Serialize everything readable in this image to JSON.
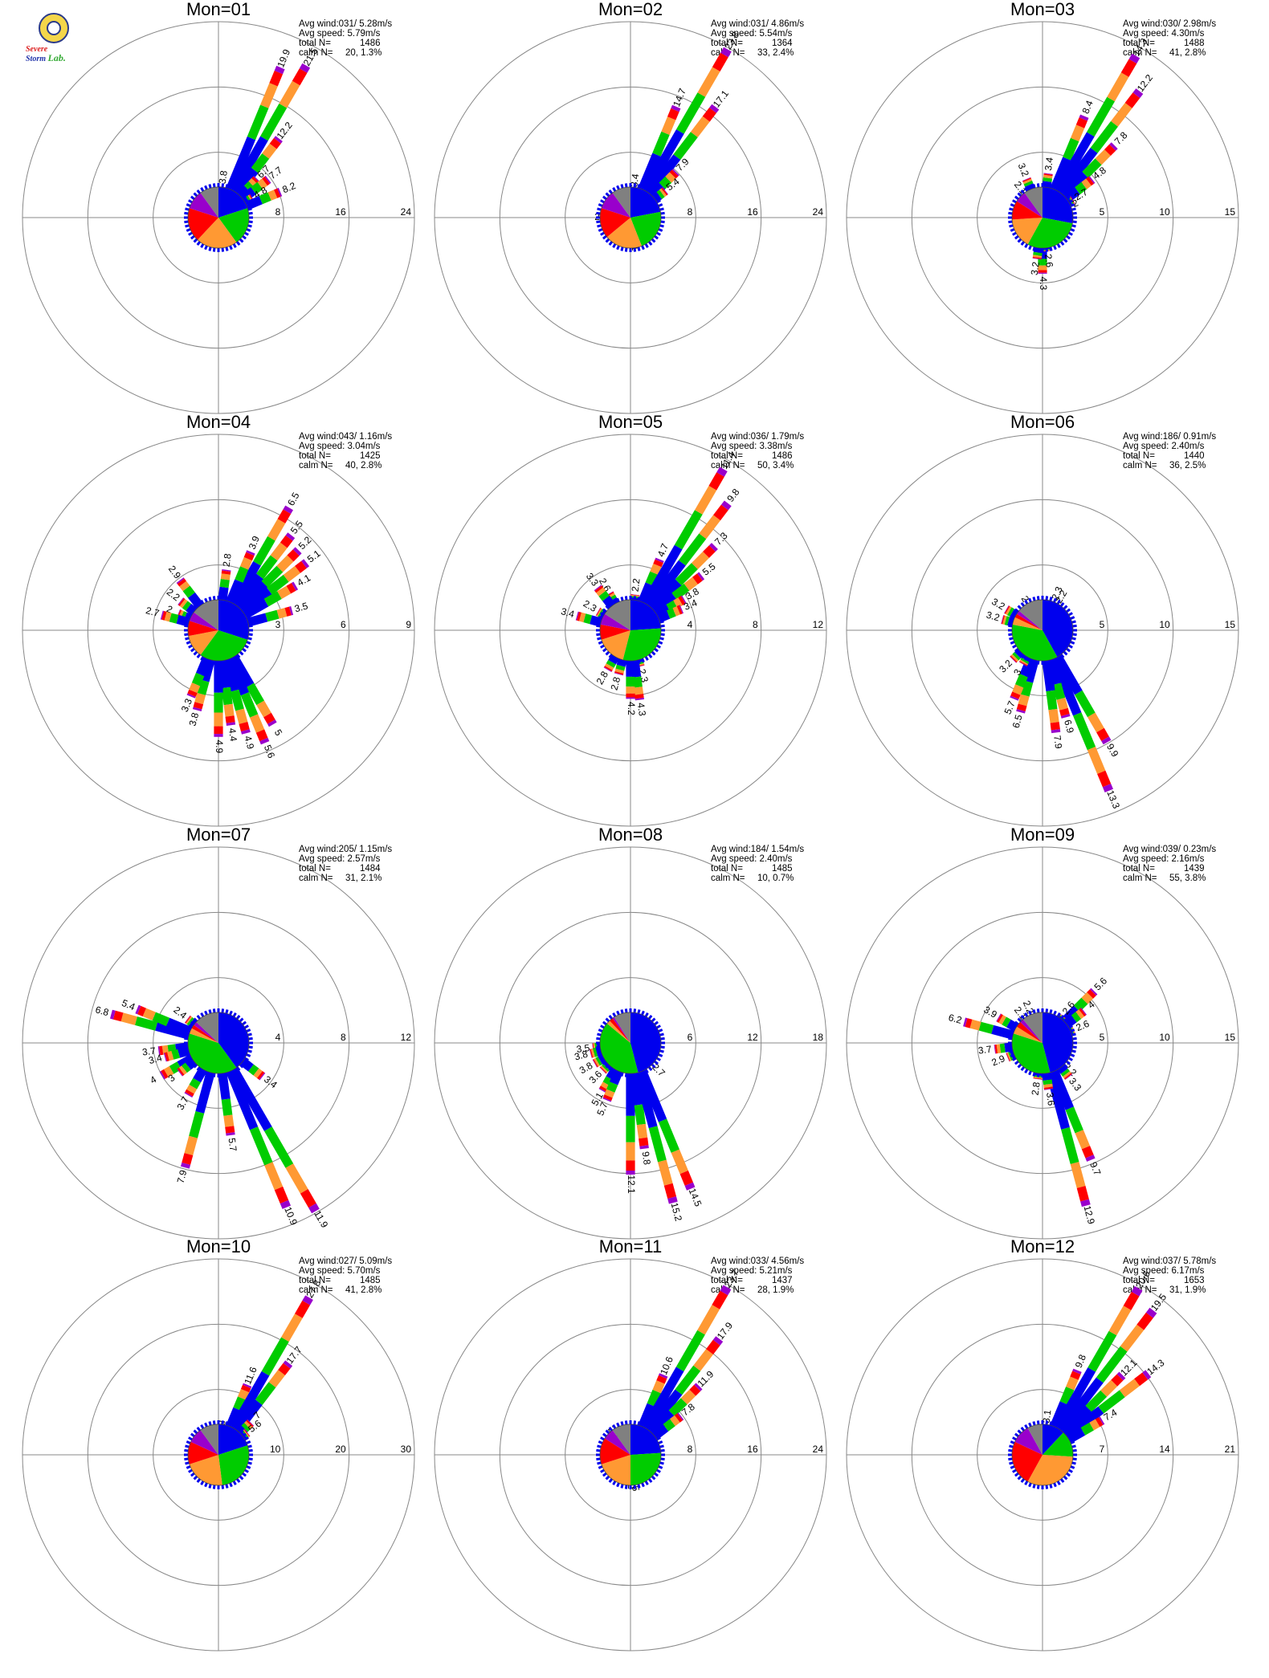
{
  "logo": {
    "word1": "Severe",
    "word2": "Storm",
    "word3": "Lab."
  },
  "colors": {
    "ring": "#888888",
    "axis": "#888888",
    "sector": [
      "#0000ee",
      "#00cc00",
      "#ff9933",
      "#ff0000",
      "#9900cc"
    ],
    "pie": [
      "#0000ee",
      "#00cc00",
      "#ff9933",
      "#ff0000",
      "#9900cc",
      "#808080"
    ]
  },
  "stats_labels": {
    "avg_wind": "Avg wind:",
    "avg_speed": "Avg speed:",
    "total": "total N=",
    "calm": "calm N="
  },
  "chart_data": [
    {
      "type": "wind-rose",
      "title": "Mon=01",
      "avg_wind": "031/ 5.28m/s",
      "avg_speed": "5.79m/s",
      "total_n": "1486",
      "calm_n": "20,",
      "calm_pct": "1.3%",
      "rings": [
        8,
        16,
        24
      ],
      "ring_labels": [
        "8",
        "16",
        "24"
      ],
      "labeled_bars": [
        {
          "dir": 22.5,
          "value": 19.9
        },
        {
          "dir": 30,
          "value": 21.5
        },
        {
          "dir": 37.5,
          "value": 12.2
        },
        {
          "dir": 45,
          "value": 6.7
        },
        {
          "dir": 52.5,
          "value": 7.7
        },
        {
          "dir": 60,
          "value": 4.8
        },
        {
          "dir": 67.5,
          "value": 8.2
        },
        {
          "dir": 7.5,
          "value": 3.8
        }
      ],
      "pie": [
        0.2,
        0.2,
        0.22,
        0.18,
        0.1,
        0.1
      ]
    },
    {
      "type": "wind-rose",
      "title": "Mon=02",
      "avg_wind": "031/ 4.86m/s",
      "avg_speed": "5.54m/s",
      "total_n": "1364",
      "calm_n": "33,",
      "calm_pct": "2.4%",
      "rings": [
        8,
        16,
        24
      ],
      "ring_labels": [
        "8",
        "16",
        "24"
      ],
      "labeled_bars": [
        {
          "dir": 22.5,
          "value": 14.7
        },
        {
          "dir": 30,
          "value": 23.8
        },
        {
          "dir": 37.5,
          "value": 17.1
        },
        {
          "dir": 45,
          "value": 7.9
        },
        {
          "dir": 52.5,
          "value": 5.4
        },
        {
          "dir": 270,
          "value": 2.4
        },
        {
          "dir": 172.5,
          "value": 2.1
        },
        {
          "dir": 7.5,
          "value": 3.4
        }
      ],
      "pie": [
        0.22,
        0.22,
        0.2,
        0.16,
        0.1,
        0.1
      ]
    },
    {
      "type": "wind-rose",
      "title": "Mon=03",
      "avg_wind": "030/ 2.98m/s",
      "avg_speed": "4.30m/s",
      "total_n": "1488",
      "calm_n": "41,",
      "calm_pct": "2.8%",
      "rings": [
        5,
        10,
        15
      ],
      "ring_labels": [
        "5",
        "10",
        "15"
      ],
      "labeled_bars": [
        {
          "dir": 22.5,
          "value": 8.4
        },
        {
          "dir": 30,
          "value": 14.3
        },
        {
          "dir": 37.5,
          "value": 12.2
        },
        {
          "dir": 45,
          "value": 7.8
        },
        {
          "dir": 52.5,
          "value": 4.8
        },
        {
          "dir": 60,
          "value": 2.7
        },
        {
          "dir": 67.5,
          "value": 2.0
        },
        {
          "dir": 7.5,
          "value": 3.4
        },
        {
          "dir": 337.5,
          "value": 3.2
        },
        {
          "dir": 322.5,
          "value": 2.1
        },
        {
          "dir": 180,
          "value": 4.3
        },
        {
          "dir": 187.5,
          "value": 3.2
        },
        {
          "dir": 172.5,
          "value": 2.6
        }
      ],
      "pie": [
        0.28,
        0.3,
        0.16,
        0.1,
        0.06,
        0.1
      ]
    },
    {
      "type": "wind-rose",
      "title": "Mon=04",
      "avg_wind": "043/ 1.16m/s",
      "avg_speed": "3.04m/s",
      "total_n": "1425",
      "calm_n": "40,",
      "calm_pct": "2.8%",
      "rings": [
        3,
        6,
        9
      ],
      "ring_labels": [
        "3",
        "6",
        "9"
      ],
      "labeled_bars": [
        {
          "dir": 30,
          "value": 6.5
        },
        {
          "dir": 22.5,
          "value": 3.9
        },
        {
          "dir": 37.5,
          "value": 5.5
        },
        {
          "dir": 45,
          "value": 5.2
        },
        {
          "dir": 52.5,
          "value": 5.1
        },
        {
          "dir": 60,
          "value": 4.1
        },
        {
          "dir": 75,
          "value": 3.5
        },
        {
          "dir": 7.5,
          "value": 2.8
        },
        {
          "dir": 322.5,
          "value": 2.9
        },
        {
          "dir": 307.5,
          "value": 2.2
        },
        {
          "dir": 292.5,
          "value": 2.0
        },
        {
          "dir": 285,
          "value": 2.7
        },
        {
          "dir": 150,
          "value": 5.0
        },
        {
          "dir": 157.5,
          "value": 5.6
        },
        {
          "dir": 165,
          "value": 4.9
        },
        {
          "dir": 172.5,
          "value": 4.4
        },
        {
          "dir": 180,
          "value": 4.9
        },
        {
          "dir": 195,
          "value": 3.8
        },
        {
          "dir": 202.5,
          "value": 3.3
        }
      ],
      "pie": [
        0.3,
        0.3,
        0.12,
        0.08,
        0.05,
        0.15
      ]
    },
    {
      "type": "wind-rose",
      "title": "Mon=05",
      "avg_wind": "036/ 1.79m/s",
      "avg_speed": "3.38m/s",
      "total_n": "1486",
      "calm_n": "50,",
      "calm_pct": "3.4%",
      "rings": [
        4,
        8,
        12
      ],
      "ring_labels": [
        "4",
        "8",
        "12"
      ],
      "labeled_bars": [
        {
          "dir": 22.5,
          "value": 4.7
        },
        {
          "dir": 30,
          "value": 11.4
        },
        {
          "dir": 37.5,
          "value": 9.8
        },
        {
          "dir": 45,
          "value": 7.3
        },
        {
          "dir": 52.5,
          "value": 5.5
        },
        {
          "dir": 60,
          "value": 3.8
        },
        {
          "dir": 67.5,
          "value": 3.4
        },
        {
          "dir": 7.5,
          "value": 2.2
        },
        {
          "dir": 330,
          "value": 2.6
        },
        {
          "dir": 322.5,
          "value": 3.3
        },
        {
          "dir": 300,
          "value": 2.3
        },
        {
          "dir": 285,
          "value": 3.4
        },
        {
          "dir": 165,
          "value": 2.3
        },
        {
          "dir": 172.5,
          "value": 4.3
        },
        {
          "dir": 180,
          "value": 4.2
        },
        {
          "dir": 195,
          "value": 2.8
        },
        {
          "dir": 210,
          "value": 2.8
        }
      ],
      "pie": [
        0.24,
        0.3,
        0.16,
        0.08,
        0.06,
        0.16
      ]
    },
    {
      "type": "wind-rose",
      "title": "Mon=06",
      "avg_wind": "186/ 0.91m/s",
      "avg_speed": "2.40m/s",
      "total_n": "1440",
      "calm_n": "36,",
      "calm_pct": "2.5%",
      "rings": [
        5,
        10,
        15
      ],
      "ring_labels": [
        "5",
        "10",
        "15"
      ],
      "labeled_bars": [
        {
          "dir": 22.5,
          "value": 2.3
        },
        {
          "dir": 30,
          "value": 2.2
        },
        {
          "dir": 330,
          "value": 2.0
        },
        {
          "dir": 300,
          "value": 3.2
        },
        {
          "dir": 285,
          "value": 3.2
        },
        {
          "dir": 150,
          "value": 9.9
        },
        {
          "dir": 157.5,
          "value": 13.3
        },
        {
          "dir": 165,
          "value": 6.9
        },
        {
          "dir": 172.5,
          "value": 7.9
        },
        {
          "dir": 195,
          "value": 6.5
        },
        {
          "dir": 202.5,
          "value": 5.7
        },
        {
          "dir": 210,
          "value": 3.0
        },
        {
          "dir": 225,
          "value": 3.2
        }
      ],
      "pie": [
        0.42,
        0.36,
        0.04,
        0.02,
        0.02,
        0.14
      ]
    },
    {
      "type": "wind-rose",
      "title": "Mon=07",
      "avg_wind": "205/ 1.15m/s",
      "avg_speed": "2.57m/s",
      "total_n": "1484",
      "calm_n": "31,",
      "calm_pct": "2.1%",
      "rings": [
        4,
        8,
        12
      ],
      "ring_labels": [
        "4",
        "8",
        "12"
      ],
      "labeled_bars": [
        {
          "dir": 285,
          "value": 6.8
        },
        {
          "dir": 292.5,
          "value": 5.4
        },
        {
          "dir": 307.5,
          "value": 2.4
        },
        {
          "dir": 262.5,
          "value": 3.7
        },
        {
          "dir": 255,
          "value": 3.4
        },
        {
          "dir": 240,
          "value": 4.0
        },
        {
          "dir": 232.5,
          "value": 3.0
        },
        {
          "dir": 210,
          "value": 3.7
        },
        {
          "dir": 195,
          "value": 7.9
        },
        {
          "dir": 172.5,
          "value": 5.7
        },
        {
          "dir": 157.5,
          "value": 10.9
        },
        {
          "dir": 150,
          "value": 11.9
        },
        {
          "dir": 127.5,
          "value": 3.4
        }
      ],
      "pie": [
        0.4,
        0.4,
        0.03,
        0.02,
        0.02,
        0.13
      ]
    },
    {
      "type": "wind-rose",
      "title": "Mon=08",
      "avg_wind": "184/ 1.54m/s",
      "avg_speed": "2.40m/s",
      "total_n": "1485",
      "calm_n": "10,",
      "calm_pct": "0.7%",
      "rings": [
        6,
        12,
        18
      ],
      "ring_labels": [
        "6",
        "12",
        "18"
      ],
      "labeled_bars": [
        {
          "dir": 262.5,
          "value": 3.5
        },
        {
          "dir": 255,
          "value": 3.8
        },
        {
          "dir": 240,
          "value": 3.8
        },
        {
          "dir": 225,
          "value": 3.6
        },
        {
          "dir": 210,
          "value": 5.1
        },
        {
          "dir": 202.5,
          "value": 5.7
        },
        {
          "dir": 180,
          "value": 12.1
        },
        {
          "dir": 172.5,
          "value": 9.8
        },
        {
          "dir": 165,
          "value": 15.2
        },
        {
          "dir": 157.5,
          "value": 14.5
        },
        {
          "dir": 135,
          "value": 2.7
        }
      ],
      "pie": [
        0.46,
        0.4,
        0.02,
        0.02,
        0.01,
        0.09
      ]
    },
    {
      "type": "wind-rose",
      "title": "Mon=09",
      "avg_wind": "039/ 0.23m/s",
      "avg_speed": "2.16m/s",
      "total_n": "1439",
      "calm_n": "55,",
      "calm_pct": "3.8%",
      "rings": [
        5,
        10,
        15
      ],
      "ring_labels": [
        "5",
        "10",
        "15"
      ],
      "labeled_bars": [
        {
          "dir": 45,
          "value": 5.6
        },
        {
          "dir": 52.5,
          "value": 4.0
        },
        {
          "dir": 37.5,
          "value": 2.6
        },
        {
          "dir": 67.5,
          "value": 2.6
        },
        {
          "dir": 337.5,
          "value": 2.2
        },
        {
          "dir": 322.5,
          "value": 2.1
        },
        {
          "dir": 300,
          "value": 3.9
        },
        {
          "dir": 285,
          "value": 6.2
        },
        {
          "dir": 262.5,
          "value": 3.7
        },
        {
          "dir": 247.5,
          "value": 2.9
        },
        {
          "dir": 135,
          "value": 2.2
        },
        {
          "dir": 142.5,
          "value": 3.3
        },
        {
          "dir": 157.5,
          "value": 9.7
        },
        {
          "dir": 165,
          "value": 12.9
        },
        {
          "dir": 172.5,
          "value": 3.6
        },
        {
          "dir": 187.5,
          "value": 2.8
        }
      ],
      "pie": [
        0.46,
        0.34,
        0.04,
        0.03,
        0.02,
        0.11
      ]
    },
    {
      "type": "wind-rose",
      "title": "Mon=10",
      "avg_wind": "027/ 5.09m/s",
      "avg_speed": "5.70m/s",
      "total_n": "1485",
      "calm_n": "41,",
      "calm_pct": "2.8%",
      "rings": [
        10,
        20,
        30
      ],
      "ring_labels": [
        "10",
        "20",
        "30"
      ],
      "labeled_bars": [
        {
          "dir": 22.5,
          "value": 11.6
        },
        {
          "dir": 30,
          "value": 27.8
        },
        {
          "dir": 37.5,
          "value": 17.7
        },
        {
          "dir": 45,
          "value": 7.0
        },
        {
          "dir": 52.5,
          "value": 5.6
        },
        {
          "dir": 7.5,
          "value": 2.8
        }
      ],
      "pie": [
        0.2,
        0.28,
        0.22,
        0.12,
        0.08,
        0.1
      ]
    },
    {
      "type": "wind-rose",
      "title": "Mon=11",
      "avg_wind": "033/ 4.56m/s",
      "avg_speed": "5.21m/s",
      "total_n": "1437",
      "calm_n": "28,",
      "calm_pct": "1.9%",
      "rings": [
        8,
        16,
        24
      ],
      "ring_labels": [
        "8",
        "16",
        "24"
      ],
      "labeled_bars": [
        {
          "dir": 22.5,
          "value": 10.6
        },
        {
          "dir": 30,
          "value": 23.7
        },
        {
          "dir": 37.5,
          "value": 17.9
        },
        {
          "dir": 45,
          "value": 11.9
        },
        {
          "dir": 52.5,
          "value": 7.8
        },
        {
          "dir": 322.5,
          "value": 2.2
        },
        {
          "dir": 172.5,
          "value": 2.5
        },
        {
          "dir": 180,
          "value": 2.2
        }
      ],
      "pie": [
        0.24,
        0.26,
        0.2,
        0.14,
        0.06,
        0.1
      ]
    },
    {
      "type": "wind-rose",
      "title": "Mon=12",
      "avg_wind": "037/ 5.78m/s",
      "avg_speed": "6.17m/s",
      "total_n": "1653",
      "calm_n": "31,",
      "calm_pct": "1.9%",
      "rings": [
        7,
        14,
        21
      ],
      "ring_labels": [
        "7",
        "14",
        "21"
      ],
      "labeled_bars": [
        {
          "dir": 22.5,
          "value": 9.8
        },
        {
          "dir": 30,
          "value": 20.6
        },
        {
          "dir": 37.5,
          "value": 19.5
        },
        {
          "dir": 45,
          "value": 12.1
        },
        {
          "dir": 52.5,
          "value": 14.3
        },
        {
          "dir": 60,
          "value": 7.4
        },
        {
          "dir": 7.5,
          "value": 3.1
        }
      ],
      "pie": [
        0.12,
        0.14,
        0.32,
        0.24,
        0.1,
        0.08
      ]
    }
  ]
}
